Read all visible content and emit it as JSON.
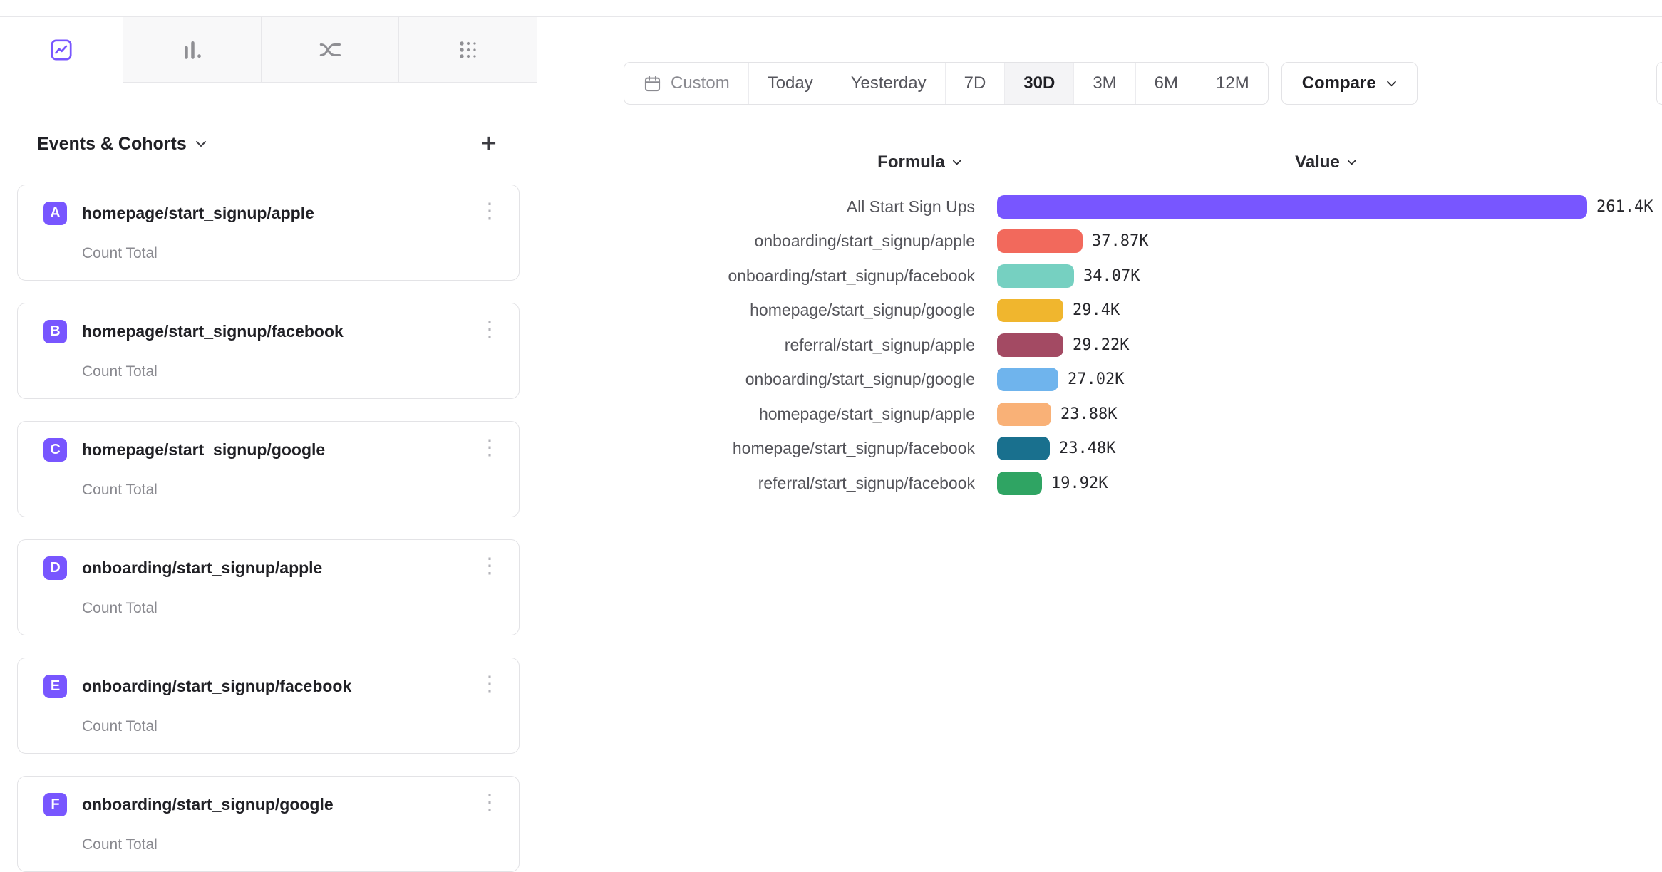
{
  "icons": {
    "plus": "+",
    "kebab": "⋮"
  },
  "tabs": {
    "items": [
      {
        "icon": "line-chart-icon",
        "active": true
      },
      {
        "icon": "bar-chart-icon",
        "active": false
      },
      {
        "icon": "flows-icon",
        "active": false
      },
      {
        "icon": "dot-grid-icon",
        "active": false
      }
    ]
  },
  "sidebar": {
    "heading": "Events & Cohorts",
    "add_button": "+",
    "items": [
      {
        "letter": "A",
        "name": "homepage/start_signup/apple",
        "metric": "Count Total"
      },
      {
        "letter": "B",
        "name": "homepage/start_signup/facebook",
        "metric": "Count Total"
      },
      {
        "letter": "C",
        "name": "homepage/start_signup/google",
        "metric": "Count Total"
      },
      {
        "letter": "D",
        "name": "onboarding/start_signup/apple",
        "metric": "Count Total"
      },
      {
        "letter": "E",
        "name": "onboarding/start_signup/facebook",
        "metric": "Count Total"
      },
      {
        "letter": "F",
        "name": "onboarding/start_signup/google",
        "metric": "Count Total"
      }
    ]
  },
  "toolbar": {
    "custom_label": "Custom",
    "ranges": [
      "Today",
      "Yesterday",
      "7D",
      "30D",
      "3M",
      "6M",
      "12M"
    ],
    "active_range": "30D",
    "compare_label": "Compare"
  },
  "chart_data": {
    "type": "bar",
    "orientation": "horizontal",
    "columns": {
      "formula": "Formula",
      "value": "Value"
    },
    "categories": [
      "All Start Sign Ups",
      "onboarding/start_signup/apple",
      "onboarding/start_signup/facebook",
      "homepage/start_signup/google",
      "referral/start_signup/apple",
      "onboarding/start_signup/google",
      "homepage/start_signup/apple",
      "homepage/start_signup/facebook",
      "referral/start_signup/facebook"
    ],
    "values": [
      261400,
      37870,
      34070,
      29400,
      29220,
      27020,
      23880,
      23480,
      19920
    ],
    "value_labels": [
      "261.4K",
      "37.87K",
      "34.07K",
      "29.4K",
      "29.22K",
      "27.02K",
      "23.88K",
      "23.48K",
      "19.92K"
    ],
    "colors": [
      "#7856ff",
      "#f2695c",
      "#76d0c1",
      "#f0b62e",
      "#a34a63",
      "#6fb4ed",
      "#f9b177",
      "#19708e",
      "#2fa463"
    ],
    "xlim": [
      0,
      261400
    ],
    "legend": "none",
    "grid": "off"
  }
}
